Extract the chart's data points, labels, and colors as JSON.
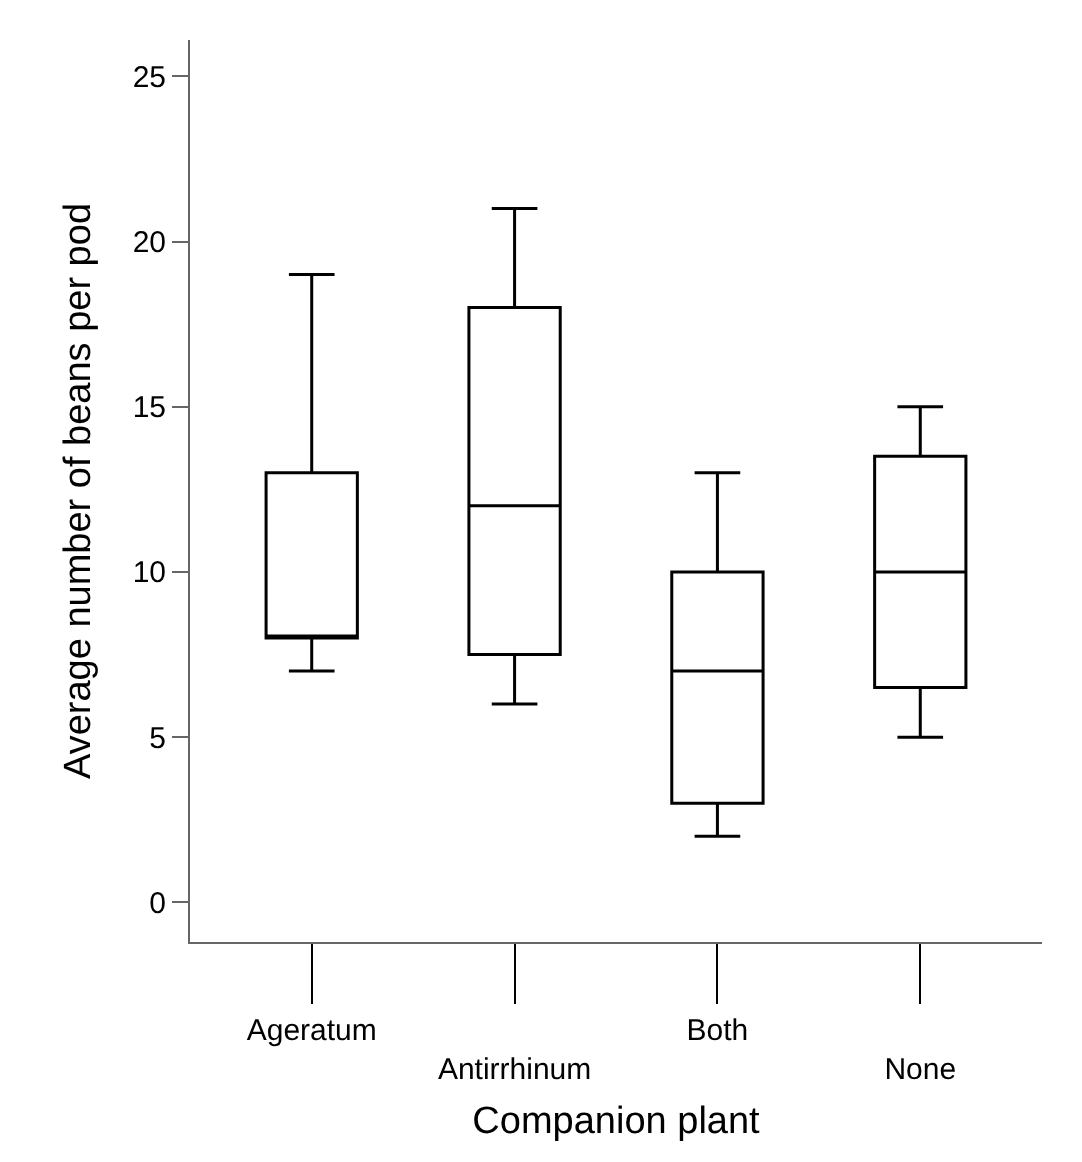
{
  "chart_data": {
    "type": "box",
    "xlabel": "Companion plant",
    "ylabel": "Average number of beans per pod",
    "categories": [
      "Ageratum",
      "Antirrhinum",
      "Both",
      "None"
    ],
    "boxes": [
      {
        "low": 7,
        "q1": 8,
        "median": 8,
        "q3": 13,
        "high": 19
      },
      {
        "low": 6,
        "q1": 7.5,
        "median": 12,
        "q3": 18,
        "high": 21
      },
      {
        "low": 2,
        "q1": 3,
        "median": 7,
        "q3": 10,
        "high": 13
      },
      {
        "low": 5,
        "q1": 6.5,
        "median": 10,
        "q3": 13.5,
        "high": 15
      }
    ],
    "color": "#000000",
    "ylim": [
      -1.2,
      26.1
    ],
    "yticks": [
      0,
      5,
      10,
      15,
      20,
      25
    ],
    "legend": false
  }
}
